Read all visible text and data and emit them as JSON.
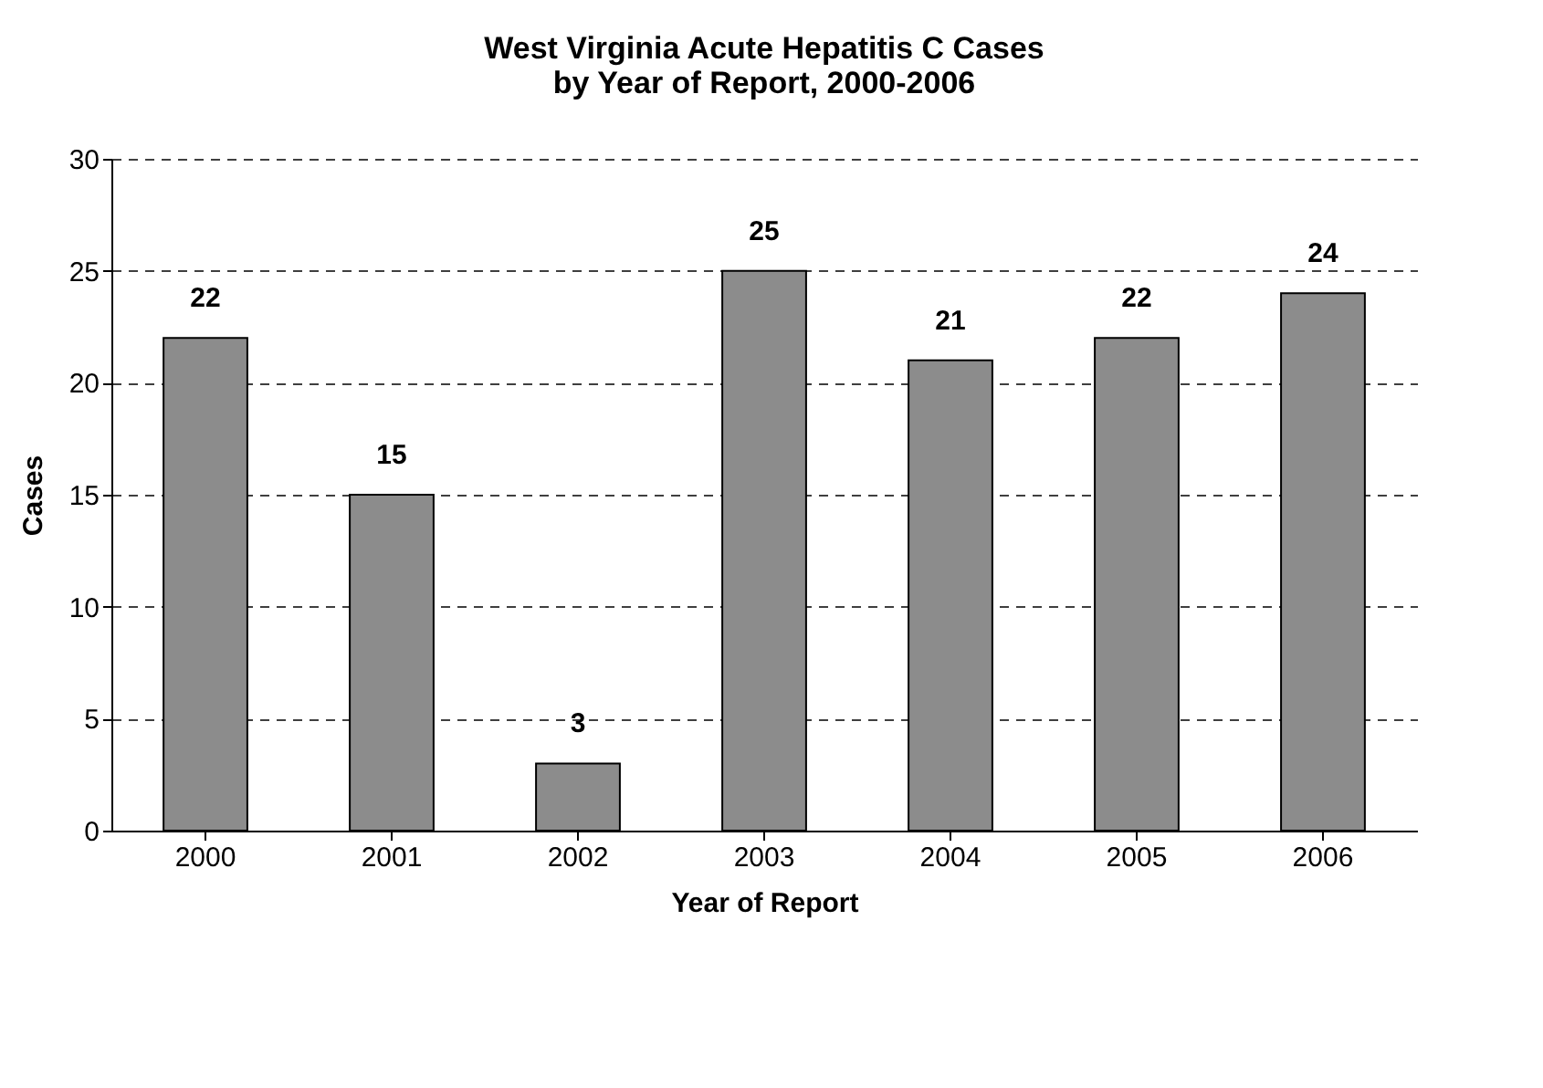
{
  "chart_data": {
    "type": "bar",
    "title": [
      "West Virginia Acute Hepatitis C Cases",
      "by Year of Report, 2000-2006"
    ],
    "xlabel": "Year of Report",
    "ylabel": "Cases",
    "categories": [
      "2000",
      "2001",
      "2002",
      "2003",
      "2004",
      "2005",
      "2006"
    ],
    "values": [
      22,
      15,
      3,
      25,
      21,
      22,
      24
    ],
    "color": "#8c8c8c",
    "ylim": [
      0,
      30
    ],
    "yticks": [
      0,
      5,
      10,
      15,
      20,
      25,
      30
    ],
    "grid": "y",
    "data_labels": true
  }
}
